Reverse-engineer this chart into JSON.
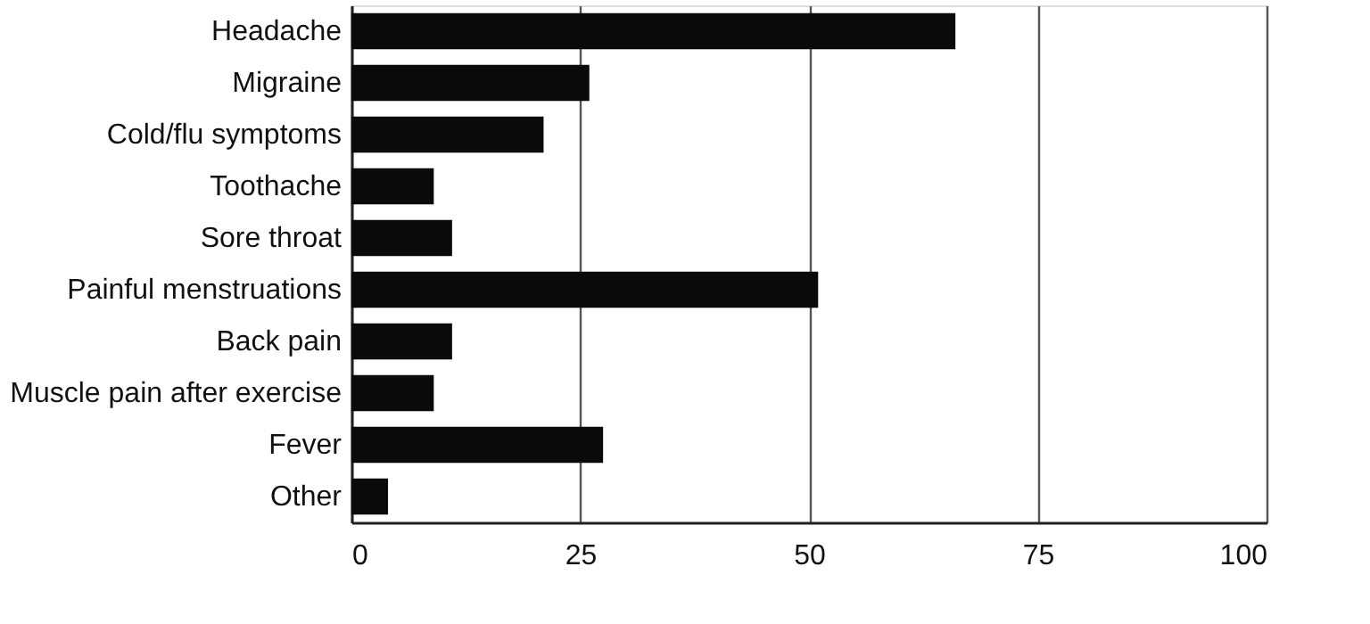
{
  "chart_data": {
    "type": "bar",
    "orientation": "horizontal",
    "categories": [
      "Headache",
      "Migraine",
      "Cold/flu symptoms",
      "Toothache",
      "Sore throat",
      "Painful menstruations",
      "Back pain",
      "Muscle pain after exercise",
      "Fever",
      "Other"
    ],
    "values": [
      66,
      26,
      21,
      9,
      11,
      51,
      11,
      9,
      27.5,
      4
    ],
    "color": "#0a0a0a",
    "xlim": [
      0,
      100
    ],
    "xticks": [
      0,
      25,
      50,
      75,
      100
    ],
    "grid": "x"
  }
}
